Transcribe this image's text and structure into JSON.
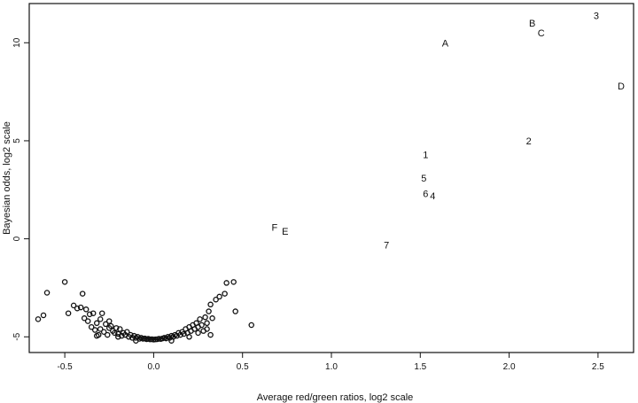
{
  "chart_data": {
    "type": "scatter",
    "title": "",
    "xlabel": "Average red/green ratios, log2 scale",
    "ylabel": "Bayesian odds, log2 scale",
    "xlim": [
      -0.7,
      2.7
    ],
    "ylim": [
      -5.8,
      12
    ],
    "xticks": [
      -0.5,
      0.0,
      0.5,
      1.0,
      1.5,
      2.0,
      2.5
    ],
    "xtick_labels": [
      "-0.5",
      "0.0",
      "0.5",
      "1.0",
      "1.5",
      "2.0",
      "2.5"
    ],
    "yticks": [
      -5,
      0,
      5,
      10
    ],
    "ytick_labels": [
      "-5",
      "0",
      "5",
      "10"
    ],
    "grid": false,
    "labeled_points": [
      {
        "label": "A",
        "x": 1.64,
        "y": 10.0
      },
      {
        "label": "B",
        "x": 2.13,
        "y": 11.0
      },
      {
        "label": "C",
        "x": 2.18,
        "y": 10.5
      },
      {
        "label": "3",
        "x": 2.49,
        "y": 11.4
      },
      {
        "label": "D",
        "x": 2.63,
        "y": 7.8
      },
      {
        "label": "2",
        "x": 2.11,
        "y": 5.0
      },
      {
        "label": "1",
        "x": 1.53,
        "y": 4.3
      },
      {
        "label": "5",
        "x": 1.52,
        "y": 3.1
      },
      {
        "label": "6",
        "x": 1.53,
        "y": 2.3
      },
      {
        "label": "4",
        "x": 1.57,
        "y": 2.2
      },
      {
        "label": "F",
        "x": 0.68,
        "y": 0.6
      },
      {
        "label": "E",
        "x": 0.74,
        "y": 0.4
      },
      {
        "label": "7",
        "x": 1.31,
        "y": -0.3
      }
    ],
    "circle_points": [
      [
        -0.65,
        -4.1
      ],
      [
        -0.62,
        -3.9
      ],
      [
        -0.6,
        -2.75
      ],
      [
        -0.5,
        -2.2
      ],
      [
        -0.48,
        -3.8
      ],
      [
        -0.45,
        -3.4
      ],
      [
        -0.43,
        -3.55
      ],
      [
        -0.41,
        -3.5
      ],
      [
        -0.4,
        -2.8
      ],
      [
        -0.39,
        -4.05
      ],
      [
        -0.38,
        -3.6
      ],
      [
        -0.37,
        -4.2
      ],
      [
        -0.36,
        -3.85
      ],
      [
        -0.35,
        -4.5
      ],
      [
        -0.34,
        -3.8
      ],
      [
        -0.33,
        -4.65
      ],
      [
        -0.32,
        -4.3
      ],
      [
        -0.31,
        -4.9
      ],
      [
        -0.3,
        -4.1
      ],
      [
        -0.3,
        -4.6
      ],
      [
        -0.29,
        -3.8
      ],
      [
        -0.28,
        -4.75
      ],
      [
        -0.27,
        -4.35
      ],
      [
        -0.26,
        -4.9
      ],
      [
        -0.25,
        -4.2
      ],
      [
        -0.25,
        -4.55
      ],
      [
        -0.24,
        -4.45
      ],
      [
        -0.23,
        -4.7
      ],
      [
        -0.22,
        -4.8
      ],
      [
        -0.21,
        -4.55
      ],
      [
        -0.2,
        -4.85
      ],
      [
        -0.19,
        -4.6
      ],
      [
        -0.18,
        -4.95
      ],
      [
        -0.17,
        -4.8
      ],
      [
        -0.16,
        -4.9
      ],
      [
        -0.15,
        -4.75
      ],
      [
        -0.14,
        -5.0
      ],
      [
        -0.13,
        -4.9
      ],
      [
        -0.12,
        -5.05
      ],
      [
        -0.11,
        -4.95
      ],
      [
        -0.1,
        -5.05
      ],
      [
        -0.09,
        -5.0
      ],
      [
        -0.08,
        -5.1
      ],
      [
        -0.07,
        -5.05
      ],
      [
        -0.06,
        -5.1
      ],
      [
        -0.05,
        -5.08
      ],
      [
        -0.04,
        -5.12
      ],
      [
        -0.03,
        -5.1
      ],
      [
        -0.02,
        -5.13
      ],
      [
        -0.01,
        -5.12
      ],
      [
        0.0,
        -5.14
      ],
      [
        0.01,
        -5.13
      ],
      [
        0.02,
        -5.12
      ],
      [
        0.03,
        -5.1
      ],
      [
        0.04,
        -5.11
      ],
      [
        0.05,
        -5.08
      ],
      [
        0.06,
        -5.05
      ],
      [
        0.07,
        -5.08
      ],
      [
        0.08,
        -5.0
      ],
      [
        0.09,
        -5.05
      ],
      [
        0.1,
        -4.95
      ],
      [
        0.11,
        -5.0
      ],
      [
        0.12,
        -4.9
      ],
      [
        0.13,
        -4.95
      ],
      [
        0.14,
        -4.8
      ],
      [
        0.15,
        -4.9
      ],
      [
        0.16,
        -4.75
      ],
      [
        0.17,
        -4.85
      ],
      [
        0.18,
        -4.6
      ],
      [
        0.19,
        -4.8
      ],
      [
        0.2,
        -4.5
      ],
      [
        0.21,
        -4.7
      ],
      [
        0.22,
        -4.4
      ],
      [
        0.23,
        -4.6
      ],
      [
        0.24,
        -4.3
      ],
      [
        0.25,
        -4.5
      ],
      [
        0.25,
        -4.8
      ],
      [
        0.26,
        -4.1
      ],
      [
        0.27,
        -4.4
      ],
      [
        0.28,
        -4.7
      ],
      [
        0.29,
        -4.0
      ],
      [
        0.3,
        -4.3
      ],
      [
        0.3,
        -4.6
      ],
      [
        0.31,
        -3.7
      ],
      [
        0.32,
        -3.35
      ],
      [
        0.33,
        -4.05
      ],
      [
        0.35,
        -3.1
      ],
      [
        0.37,
        -2.95
      ],
      [
        0.4,
        -2.8
      ],
      [
        0.41,
        -2.25
      ],
      [
        0.45,
        -2.2
      ],
      [
        0.46,
        -3.7
      ],
      [
        0.55,
        -4.4
      ],
      [
        -0.1,
        -5.2
      ],
      [
        0.1,
        -5.2
      ],
      [
        -0.2,
        -5.0
      ],
      [
        0.2,
        -5.0
      ],
      [
        -0.32,
        -4.95
      ],
      [
        0.32,
        -4.9
      ]
    ]
  }
}
